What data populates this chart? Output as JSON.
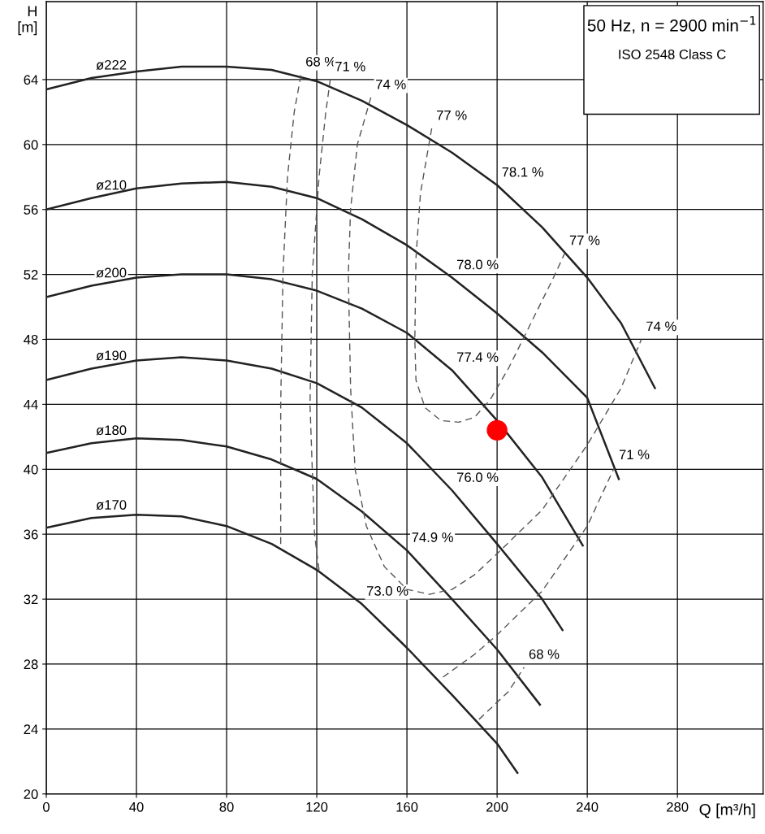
{
  "chart_data": {
    "type": "line",
    "subtitle": "50 Hz, n = 2900 min$^{−1}$",
    "xlabel": "Q [m³/h]",
    "ylabel": "H\n[m]",
    "xlim": [
      0,
      318
    ],
    "ylim": [
      20,
      68.8
    ],
    "xticks": [
      0,
      40,
      80,
      120,
      160,
      200,
      240,
      280
    ],
    "yticks": [
      20,
      24,
      28,
      32,
      36,
      40,
      44,
      48,
      52,
      56,
      60,
      64
    ],
    "grid": true,
    "series": [
      {
        "type": "line",
        "line_style": "solid",
        "color": "#222222",
        "x": [
          0,
          20,
          40,
          60,
          80,
          100,
          120,
          140,
          160,
          180,
          200,
          220,
          240,
          255,
          270
        ],
        "values": [
          63.4,
          64.1,
          64.5,
          64.8,
          64.8,
          64.6,
          63.9,
          62.7,
          61.2,
          59.5,
          57.5,
          54.9,
          51.8,
          49.0,
          45.0
        ]
      },
      {
        "type": "line",
        "line_style": "solid",
        "color": "#222222",
        "x": [
          0,
          20,
          40,
          60,
          80,
          100,
          120,
          140,
          160,
          180,
          200,
          220,
          240,
          254
        ],
        "values": [
          56.0,
          56.7,
          57.3,
          57.6,
          57.7,
          57.4,
          56.7,
          55.4,
          53.8,
          51.8,
          49.6,
          47.2,
          44.4,
          39.4
        ]
      },
      {
        "type": "line",
        "line_style": "solid",
        "color": "#222222",
        "x": [
          0,
          20,
          40,
          60,
          80,
          100,
          120,
          140,
          160,
          180,
          200,
          220,
          238
        ],
        "values": [
          50.6,
          51.3,
          51.8,
          52.0,
          52.0,
          51.7,
          51.0,
          49.9,
          48.4,
          46.1,
          43.0,
          39.5,
          35.3
        ]
      },
      {
        "type": "line",
        "line_style": "solid",
        "color": "#222222",
        "x": [
          0,
          20,
          40,
          60,
          80,
          100,
          120,
          140,
          160,
          180,
          200,
          220,
          229
        ],
        "values": [
          45.5,
          46.2,
          46.7,
          46.9,
          46.7,
          46.2,
          45.3,
          43.8,
          41.6,
          38.7,
          35.4,
          32.0,
          30.1
        ]
      },
      {
        "type": "line",
        "line_style": "solid",
        "color": "#222222",
        "x": [
          0,
          20,
          40,
          60,
          80,
          100,
          120,
          140,
          160,
          180,
          200,
          219
        ],
        "values": [
          41.0,
          41.6,
          41.9,
          41.8,
          41.4,
          40.6,
          39.4,
          37.4,
          35.0,
          32.0,
          28.9,
          25.5
        ]
      },
      {
        "type": "line",
        "line_style": "solid",
        "color": "#222222",
        "x": [
          0,
          20,
          40,
          60,
          80,
          100,
          120,
          140,
          160,
          180,
          200,
          209
        ],
        "values": [
          36.4,
          37.0,
          37.2,
          37.1,
          36.5,
          35.4,
          33.8,
          31.7,
          29.0,
          26.1,
          23.1,
          21.3
        ]
      },
      {
        "type": "line",
        "line_style": "dashed",
        "color": "#555555",
        "x": [
          104,
          104,
          105,
          107,
          110,
          113
        ],
        "values": [
          35.4,
          44,
          52,
          58,
          62,
          64.3
        ]
      },
      {
        "type": "line",
        "line_style": "dashed",
        "color": "#555555",
        "x": [
          121,
          119,
          117,
          118,
          121,
          124,
          126
        ],
        "values": [
          33.8,
          36,
          44,
          52,
          58,
          62,
          64.0
        ]
      },
      {
        "type": "line",
        "line_style": "dashed",
        "color": "#555555",
        "x": [
          144,
          138,
          135,
          134,
          135,
          137,
          142,
          150,
          160,
          170,
          180,
          190,
          200,
          220,
          240,
          255,
          264
        ],
        "values": [
          62.9,
          60,
          56,
          52,
          45,
          40,
          36.5,
          34,
          32.6,
          32.3,
          32.6,
          33.5,
          34.8,
          37.5,
          41.5,
          45.0,
          48.0
        ]
      },
      {
        "type": "line",
        "line_style": "dashed",
        "color": "#555555",
        "x": [
          176,
          190,
          200,
          220,
          240,
          252
        ],
        "values": [
          27.2,
          28.6,
          29.8,
          32.5,
          36.5,
          40.1
        ]
      },
      {
        "type": "line",
        "line_style": "dashed",
        "color": "#555555",
        "x": [
          192,
          205,
          212
        ],
        "values": [
          24.6,
          26.3,
          27.8
        ]
      },
      {
        "type": "line",
        "line_style": "dashed",
        "color": "#555555",
        "x": [
          171,
          166,
          164,
          163.5,
          164,
          168,
          175,
          183,
          190,
          197,
          205,
          215,
          225,
          230
        ],
        "values": [
          61,
          57,
          53,
          48,
          45.5,
          43.8,
          43.0,
          42.9,
          43.2,
          44.3,
          46.2,
          49,
          51.8,
          53.3
        ]
      },
      {
        "type": "scatter",
        "marker": "circle",
        "color": "#ff0000",
        "x": [
          200
        ],
        "values": [
          42.4
        ]
      }
    ],
    "annotations": [
      "ISO 2548 Class C",
      {
        "text": "ø222",
        "x": 20,
        "y": 64.1
      },
      {
        "text": "ø210",
        "x": 20,
        "y": 56.7
      },
      {
        "text": "ø200",
        "x": 20,
        "y": 51.3
      },
      {
        "text": "ø190",
        "x": 20,
        "y": 46.2
      },
      {
        "text": "ø180",
        "x": 20,
        "y": 41.6
      },
      {
        "text": "ø170",
        "x": 20,
        "y": 37.0
      },
      {
        "text": "68 %",
        "x": 113,
        "y": 64.3
      },
      {
        "text": "71 %",
        "x": 126,
        "y": 64.0
      },
      {
        "text": "74 %",
        "x": 144,
        "y": 62.9
      },
      {
        "text": "77 %",
        "x": 171,
        "y": 61
      },
      {
        "text": "78.1 %",
        "x": 200,
        "y": 57.5
      },
      {
        "text": "77 %",
        "x": 230,
        "y": 53.3
      },
      {
        "text": "78.0 %",
        "x": 180,
        "y": 51.8
      },
      {
        "text": "74 %",
        "x": 264,
        "y": 48.0
      },
      {
        "text": "77.4 %",
        "x": 180,
        "y": 46.1
      },
      {
        "text": "71 %",
        "x": 252,
        "y": 40.1
      },
      {
        "text": "76.0 %",
        "x": 180,
        "y": 38.7
      },
      {
        "text": "74.9 %",
        "x": 160,
        "y": 35.0
      },
      {
        "text": "73.0 %",
        "x": 140,
        "y": 31.7
      },
      {
        "text": "68 %",
        "x": 212,
        "y": 27.8
      }
    ]
  }
}
